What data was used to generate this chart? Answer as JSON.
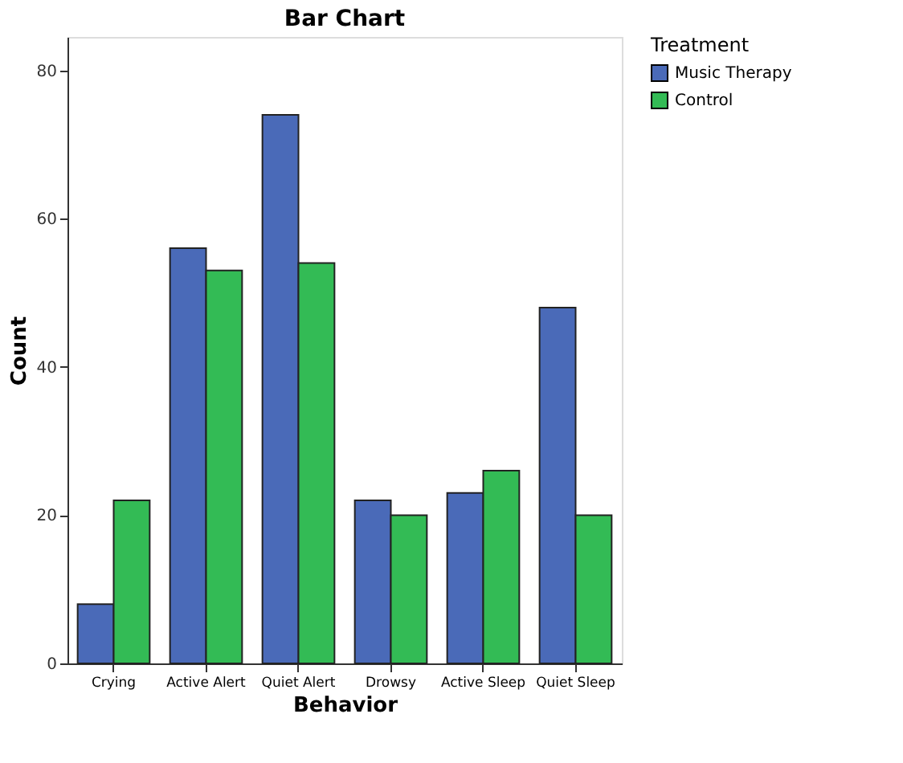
{
  "chart_data": {
    "type": "bar",
    "title": "Bar Chart",
    "xlabel": "Behavior",
    "ylabel": "Count",
    "legend_title": "Treatment",
    "categories": [
      "Crying",
      "Active Alert",
      "Quiet Alert",
      "Drowsy",
      "Active Sleep",
      "Quiet Sleep"
    ],
    "series": [
      {
        "name": "Music Therapy",
        "color": "#4a6ab8",
        "values": [
          8,
          56,
          74,
          22,
          23,
          48
        ]
      },
      {
        "name": "Control",
        "color": "#33bb55",
        "values": [
          22,
          53,
          54,
          20,
          26,
          20
        ]
      }
    ],
    "ylim": [
      0,
      84.5
    ],
    "yticks": [
      0,
      20,
      40,
      60,
      80
    ],
    "grid": false,
    "legend": "top right"
  }
}
